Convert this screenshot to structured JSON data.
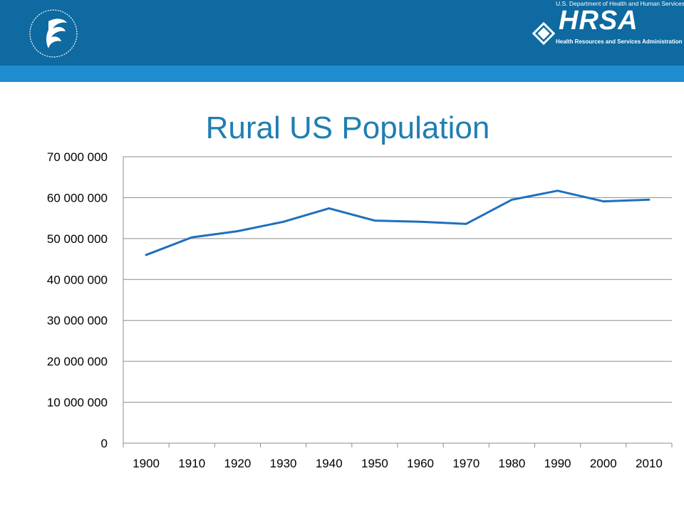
{
  "header": {
    "org_top": "U.S. Department of Health and Human Services",
    "org_word": "HRSA",
    "org_bottom": "Health Resources and Services Administration",
    "icons": [
      "hhs-eagle-seal",
      "hrsa-logo-mark"
    ],
    "colors": {
      "header": "#0e6aa0",
      "band": "#1f8ccf"
    }
  },
  "chart_data": {
    "type": "line",
    "title": "Rural US Population",
    "xlabel": "",
    "ylabel": "",
    "categories": [
      "1900",
      "1910",
      "1920",
      "1930",
      "1940",
      "1950",
      "1960",
      "1970",
      "1980",
      "1990",
      "2000",
      "2010"
    ],
    "series": [
      {
        "values": [
          46000000,
          50300000,
          51800000,
          54100000,
          57400000,
          54400000,
          54100000,
          53600000,
          59500000,
          61700000,
          59100000,
          59500000
        ],
        "color": "#1f6fbe"
      }
    ],
    "ylim": [
      0,
      70000000
    ],
    "yticks": [
      "0",
      "10 000 000",
      "20 000 000",
      "30 000 000",
      "40 000 000",
      "50 000 000",
      "60 000 000",
      "70 000 000"
    ],
    "grid": "horizontal",
    "legend": "none"
  }
}
